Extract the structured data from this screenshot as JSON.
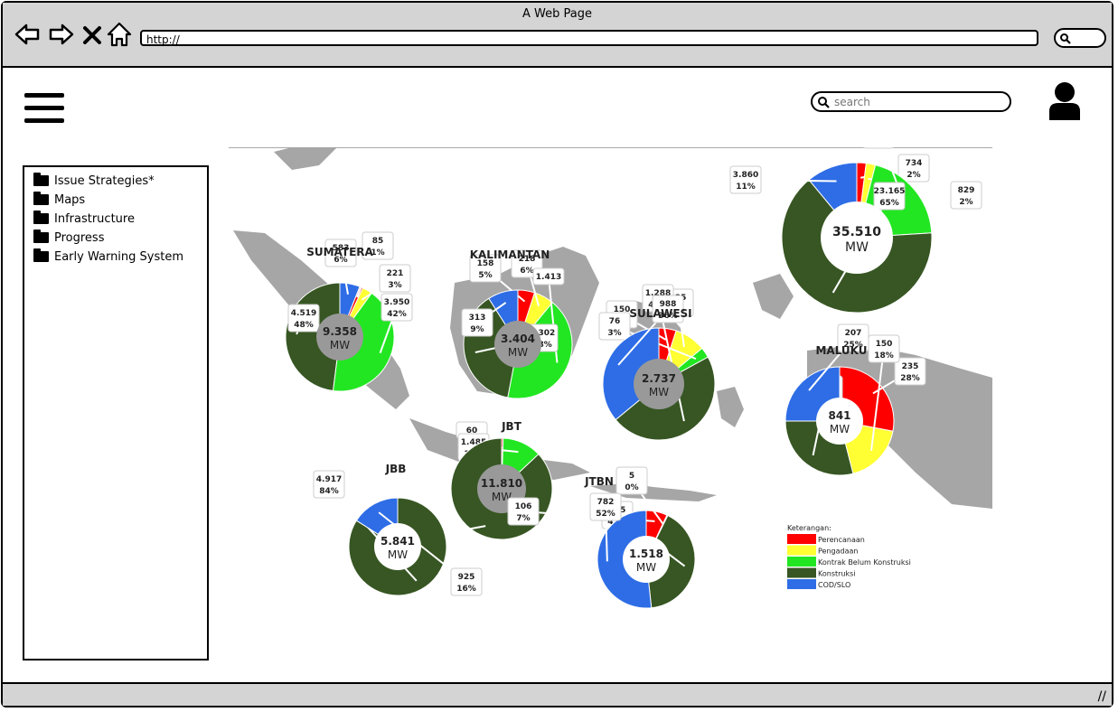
{
  "window": {
    "title": "A Web Page",
    "url": "http://"
  },
  "header": {
    "search_placeholder": "search"
  },
  "sidebar": {
    "items": [
      {
        "label": "Issue Strategies*"
      },
      {
        "label": "Maps"
      },
      {
        "label": "Infrastructure"
      },
      {
        "label": "Progress"
      },
      {
        "label": "Early Warning System"
      }
    ]
  },
  "colors": {
    "perencanaan": "#ff0000",
    "pengadaan": "#ffff33",
    "kontrak": "#22e622",
    "konstruksi": "#375623",
    "cod": "#2e6de6",
    "map_land": "#a6a6a6"
  },
  "chart_data": {
    "type": "pie",
    "legend": {
      "title": "Keterangan:",
      "placement": "bottom-right",
      "entries": [
        "Perencanaan",
        "Pengadaan",
        "Kontrak Belum Konstruksi",
        "Konstruksi",
        "COD/SLO"
      ]
    },
    "regions": [
      {
        "name": "SUMATERA",
        "total": "9.358",
        "unit": "MW",
        "slices": [
          {
            "category": "COD/SLO",
            "value": "583",
            "pct": "6%",
            "fraction": 0.06
          },
          {
            "category": "Perencanaan",
            "value": "85",
            "pct": "1%",
            "fraction": 0.01
          },
          {
            "category": "Pengadaan",
            "value": "221",
            "pct": "3%",
            "fraction": 0.03
          },
          {
            "category": "Kontrak Belum Konstruksi",
            "value": "3.950",
            "pct": "42%",
            "fraction": 0.42
          },
          {
            "category": "Konstruksi",
            "value": "4.519",
            "pct": "48%",
            "fraction": 0.48
          }
        ]
      },
      {
        "name": "KALIMANTAN",
        "total": "3.404",
        "unit": "MW",
        "slices": [
          {
            "category": "Perencanaan",
            "value": "158",
            "pct": "5%",
            "fraction": 0.05
          },
          {
            "category": "Pengadaan",
            "value": "218",
            "pct": "6%",
            "fraction": 0.06
          },
          {
            "category": "Kontrak Belum Konstruksi",
            "value": "1.413",
            "pct": "",
            "fraction": 0.42
          },
          {
            "category": "Konstruksi",
            "value": "1.302",
            "pct": "38%",
            "fraction": 0.38
          },
          {
            "category": "COD/SLO",
            "value": "313",
            "pct": "9%",
            "fraction": 0.09
          }
        ]
      },
      {
        "name": "SULAWESI",
        "total": "2.737",
        "unit": "MW",
        "slices": [
          {
            "category": "Perencanaan",
            "value": "150",
            "pct": "5%",
            "fraction": 0.05
          },
          {
            "category": "Pengadaan",
            "value": "235",
            "pct": "9%",
            "fraction": 0.09
          },
          {
            "category": "Kontrak Belum Konstruksi",
            "value": "76",
            "pct": "3%",
            "fraction": 0.03
          },
          {
            "category": "Konstruksi",
            "value": "1.288",
            "pct": "47%",
            "fraction": 0.47
          },
          {
            "category": "COD/SLO",
            "value": "988",
            "pct": "36%",
            "fraction": 0.36
          }
        ]
      },
      {
        "name": "",
        "total": "35.510",
        "unit": "MW",
        "slices": [
          {
            "category": "Perencanaan",
            "value": "734",
            "pct": "2%",
            "fraction": 0.02
          },
          {
            "category": "Pengadaan",
            "value": "829",
            "pct": "2%",
            "fraction": 0.02
          },
          {
            "category": "Kontrak Belum Konstruksi",
            "value": "6.923",
            "pct": "20%",
            "fraction": 0.2
          },
          {
            "category": "Konstruksi",
            "value": "23.165",
            "pct": "65%",
            "fraction": 0.65
          },
          {
            "category": "COD/SLO",
            "value": "3.860",
            "pct": "11%",
            "fraction": 0.11
          }
        ]
      },
      {
        "name": "MALUKU",
        "total": "841",
        "unit": "MW",
        "slices": [
          {
            "category": "Perencanaan",
            "value": "235",
            "pct": "28%",
            "fraction": 0.28
          },
          {
            "category": "Pengadaan",
            "value": "150",
            "pct": "18%",
            "fraction": 0.18
          },
          {
            "category": "Konstruksi",
            "value": "249",
            "pct": "29%",
            "fraction": 0.29
          },
          {
            "category": "COD/SLO",
            "value": "207",
            "pct": "25%",
            "fraction": 0.25
          }
        ]
      },
      {
        "name": "JBT",
        "total": "11.810",
        "unit": "MW",
        "slices": [
          {
            "category": "Perencanaan",
            "value": "60",
            "pct": "",
            "fraction": 0.005
          },
          {
            "category": "Kontrak Belum Konstruksi",
            "value": "1.485",
            "pct": "13%",
            "fraction": 0.125
          },
          {
            "category": "Konstruksi",
            "value": "10.264",
            "pct": "87%",
            "fraction": 0.87
          }
        ]
      },
      {
        "name": "JBB",
        "total": "5.841",
        "unit": "MW",
        "slices": [
          {
            "category": "Konstruksi",
            "value": "4.917",
            "pct": "84%",
            "fraction": 0.84
          },
          {
            "category": "COD/SLO",
            "value": "925",
            "pct": "16%",
            "fraction": 0.16
          }
        ]
      },
      {
        "name": "JTBN",
        "total": "1.518",
        "unit": "MW",
        "slices": [
          {
            "category": "Perencanaan",
            "value": "106",
            "pct": "7%",
            "fraction": 0.07
          },
          {
            "category": "Pengadaan",
            "value": "5",
            "pct": "0%",
            "fraction": 0.003
          },
          {
            "category": "Konstruksi",
            "value": "625",
            "pct": "41%",
            "fraction": 0.41
          },
          {
            "category": "COD/SLO",
            "value": "782",
            "pct": "52%",
            "fraction": 0.517
          }
        ]
      }
    ]
  }
}
